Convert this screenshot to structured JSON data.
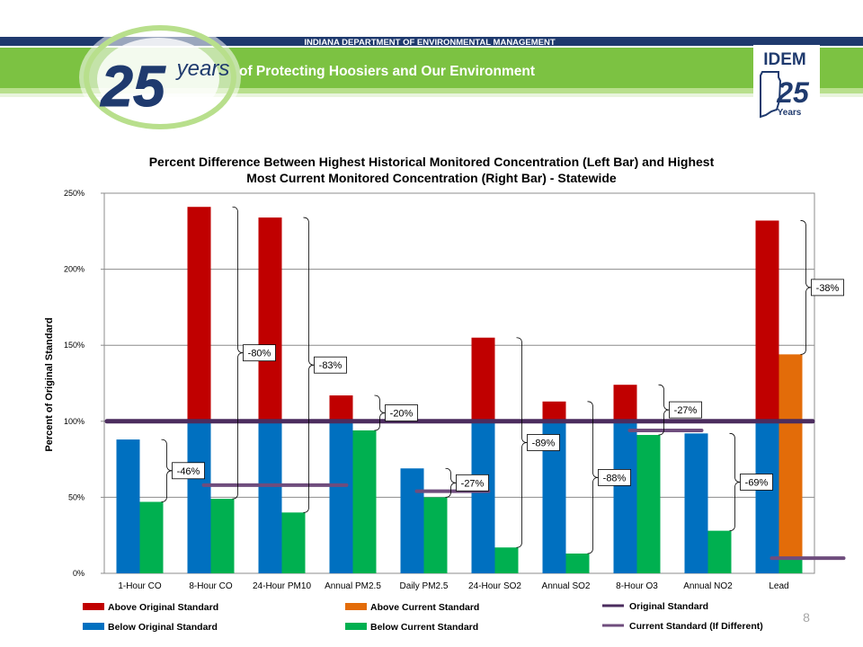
{
  "banner": {
    "department": "INDIANA DEPARTMENT OF ENVIRONMENTAL MANAGEMENT",
    "anniversary_number": "25",
    "anniversary_word": "years",
    "tagline": "of Protecting Hoosiers and Our Environment",
    "logo_abbrev": "IDEM",
    "logo_number": "25",
    "logo_word": "Years",
    "colors": {
      "navy": "#1f3a6e",
      "green": "#7cc242",
      "light_green": "#b8df8c",
      "dark_green": "#4a9a2e"
    }
  },
  "slide": {
    "page_number": "8"
  },
  "chart_data": {
    "type": "bar",
    "title_line1": "Percent Difference Between Highest Historical Monitored Concentration (Left Bar) and Highest",
    "title_line2": "Most Current Monitored Concentration (Right Bar) - Statewide",
    "ylabel": "Percent of Original Standard",
    "xlabel": "",
    "ylim": [
      0,
      250
    ],
    "yticks": [
      0,
      50,
      100,
      150,
      200,
      250
    ],
    "ytick_labels": [
      "0%",
      "50%",
      "100%",
      "150%",
      "200%",
      "250%"
    ],
    "grid": true,
    "categories": [
      "1-Hour CO",
      "8-Hour CO",
      "24-Hour PM10",
      "Annual PM2.5",
      "Daily PM2.5",
      "24-Hour SO2",
      "Annual SO2",
      "8-Hour O3",
      "Annual NO2",
      "Lead"
    ],
    "series": [
      {
        "name": "Highest Historical",
        "values": [
          88,
          241,
          234,
          117,
          69,
          155,
          113,
          124,
          92,
          232
        ]
      },
      {
        "name": "Highest Current",
        "values": [
          47,
          49,
          40,
          94,
          50,
          17,
          13,
          91,
          28,
          144
        ]
      }
    ],
    "current_standard_lines": [
      null,
      58,
      58,
      null,
      54,
      null,
      null,
      94,
      null,
      10
    ],
    "original_standard": 100,
    "differences": [
      "-46%",
      "-80%",
      "-83%",
      "-20%",
      "-27%",
      "-89%",
      "-88%",
      "-27%",
      "-69%",
      "-38%"
    ],
    "colors": {
      "above_original": "#c00000",
      "below_original": "#0070c0",
      "above_current": "#e36c09",
      "below_current": "#00b050",
      "original_line": "#4b2c5e",
      "current_line": "#6f4d7d"
    },
    "legend": [
      {
        "label": "Above Original Standard",
        "kind": "swatch",
        "color": "#c00000"
      },
      {
        "label": "Below Original Standard",
        "kind": "swatch",
        "color": "#0070c0"
      },
      {
        "label": "Above Current Standard",
        "kind": "swatch",
        "color": "#e36c09"
      },
      {
        "label": "Below Current Standard",
        "kind": "swatch",
        "color": "#00b050"
      },
      {
        "label": "Original Standard",
        "kind": "line",
        "color": "#4b2c5e"
      },
      {
        "label": "Current Standard (If Different)",
        "kind": "line",
        "color": "#6f4d7d"
      }
    ],
    "legend_position": "bottom"
  }
}
